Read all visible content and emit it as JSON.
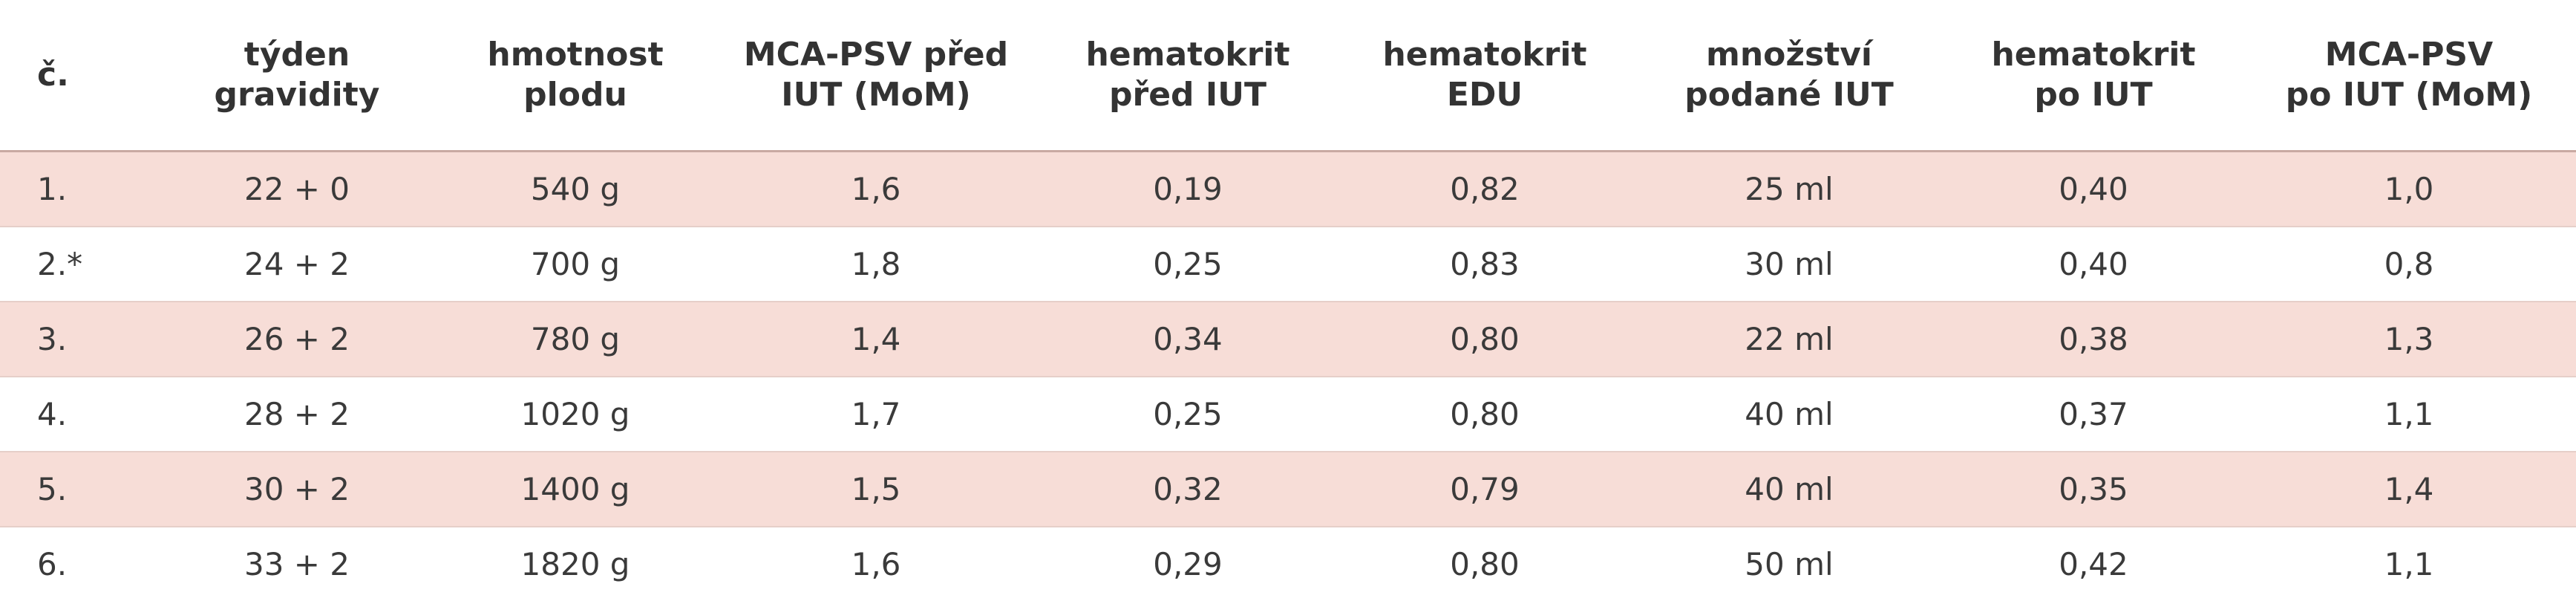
{
  "table": {
    "header": [
      "č.",
      "týden\ngravidity",
      "hmotnost\nplodu",
      "MCA-PSV před\nIUT (MoM)",
      "hematokrit\npřed IUT",
      "hematokrit\nEDU",
      "množství\npodané IUT",
      "hematokrit\npo IUT",
      "MCA-PSV\npo IUT (MoM)"
    ],
    "rows": [
      [
        "1.",
        "22 + 0",
        "540 g",
        "1,6",
        "0,19",
        "0,82",
        "25 ml",
        "0,40",
        "1,0"
      ],
      [
        "2.*",
        "24 + 2",
        "700 g",
        "1,8",
        "0,25",
        "0,83",
        "30 ml",
        "0,40",
        "0,8"
      ],
      [
        "3.",
        "26 + 2",
        "780 g",
        "1,4",
        "0,34",
        "0,80",
        "22 ml",
        "0,38",
        "1,3"
      ],
      [
        "4.",
        "28 + 2",
        "1020 g",
        "1,7",
        "0,25",
        "0,80",
        "40 ml",
        "0,37",
        "1,1"
      ],
      [
        "5.",
        "30 + 2",
        "1400 g",
        "1,5",
        "0,32",
        "0,79",
        "40 ml",
        "0,35",
        "1,4"
      ],
      [
        "6.",
        "33 + 2",
        "1820 g",
        "1,6",
        "0,29",
        "0,80",
        "50 ml",
        "0,42",
        "1,1"
      ]
    ]
  }
}
